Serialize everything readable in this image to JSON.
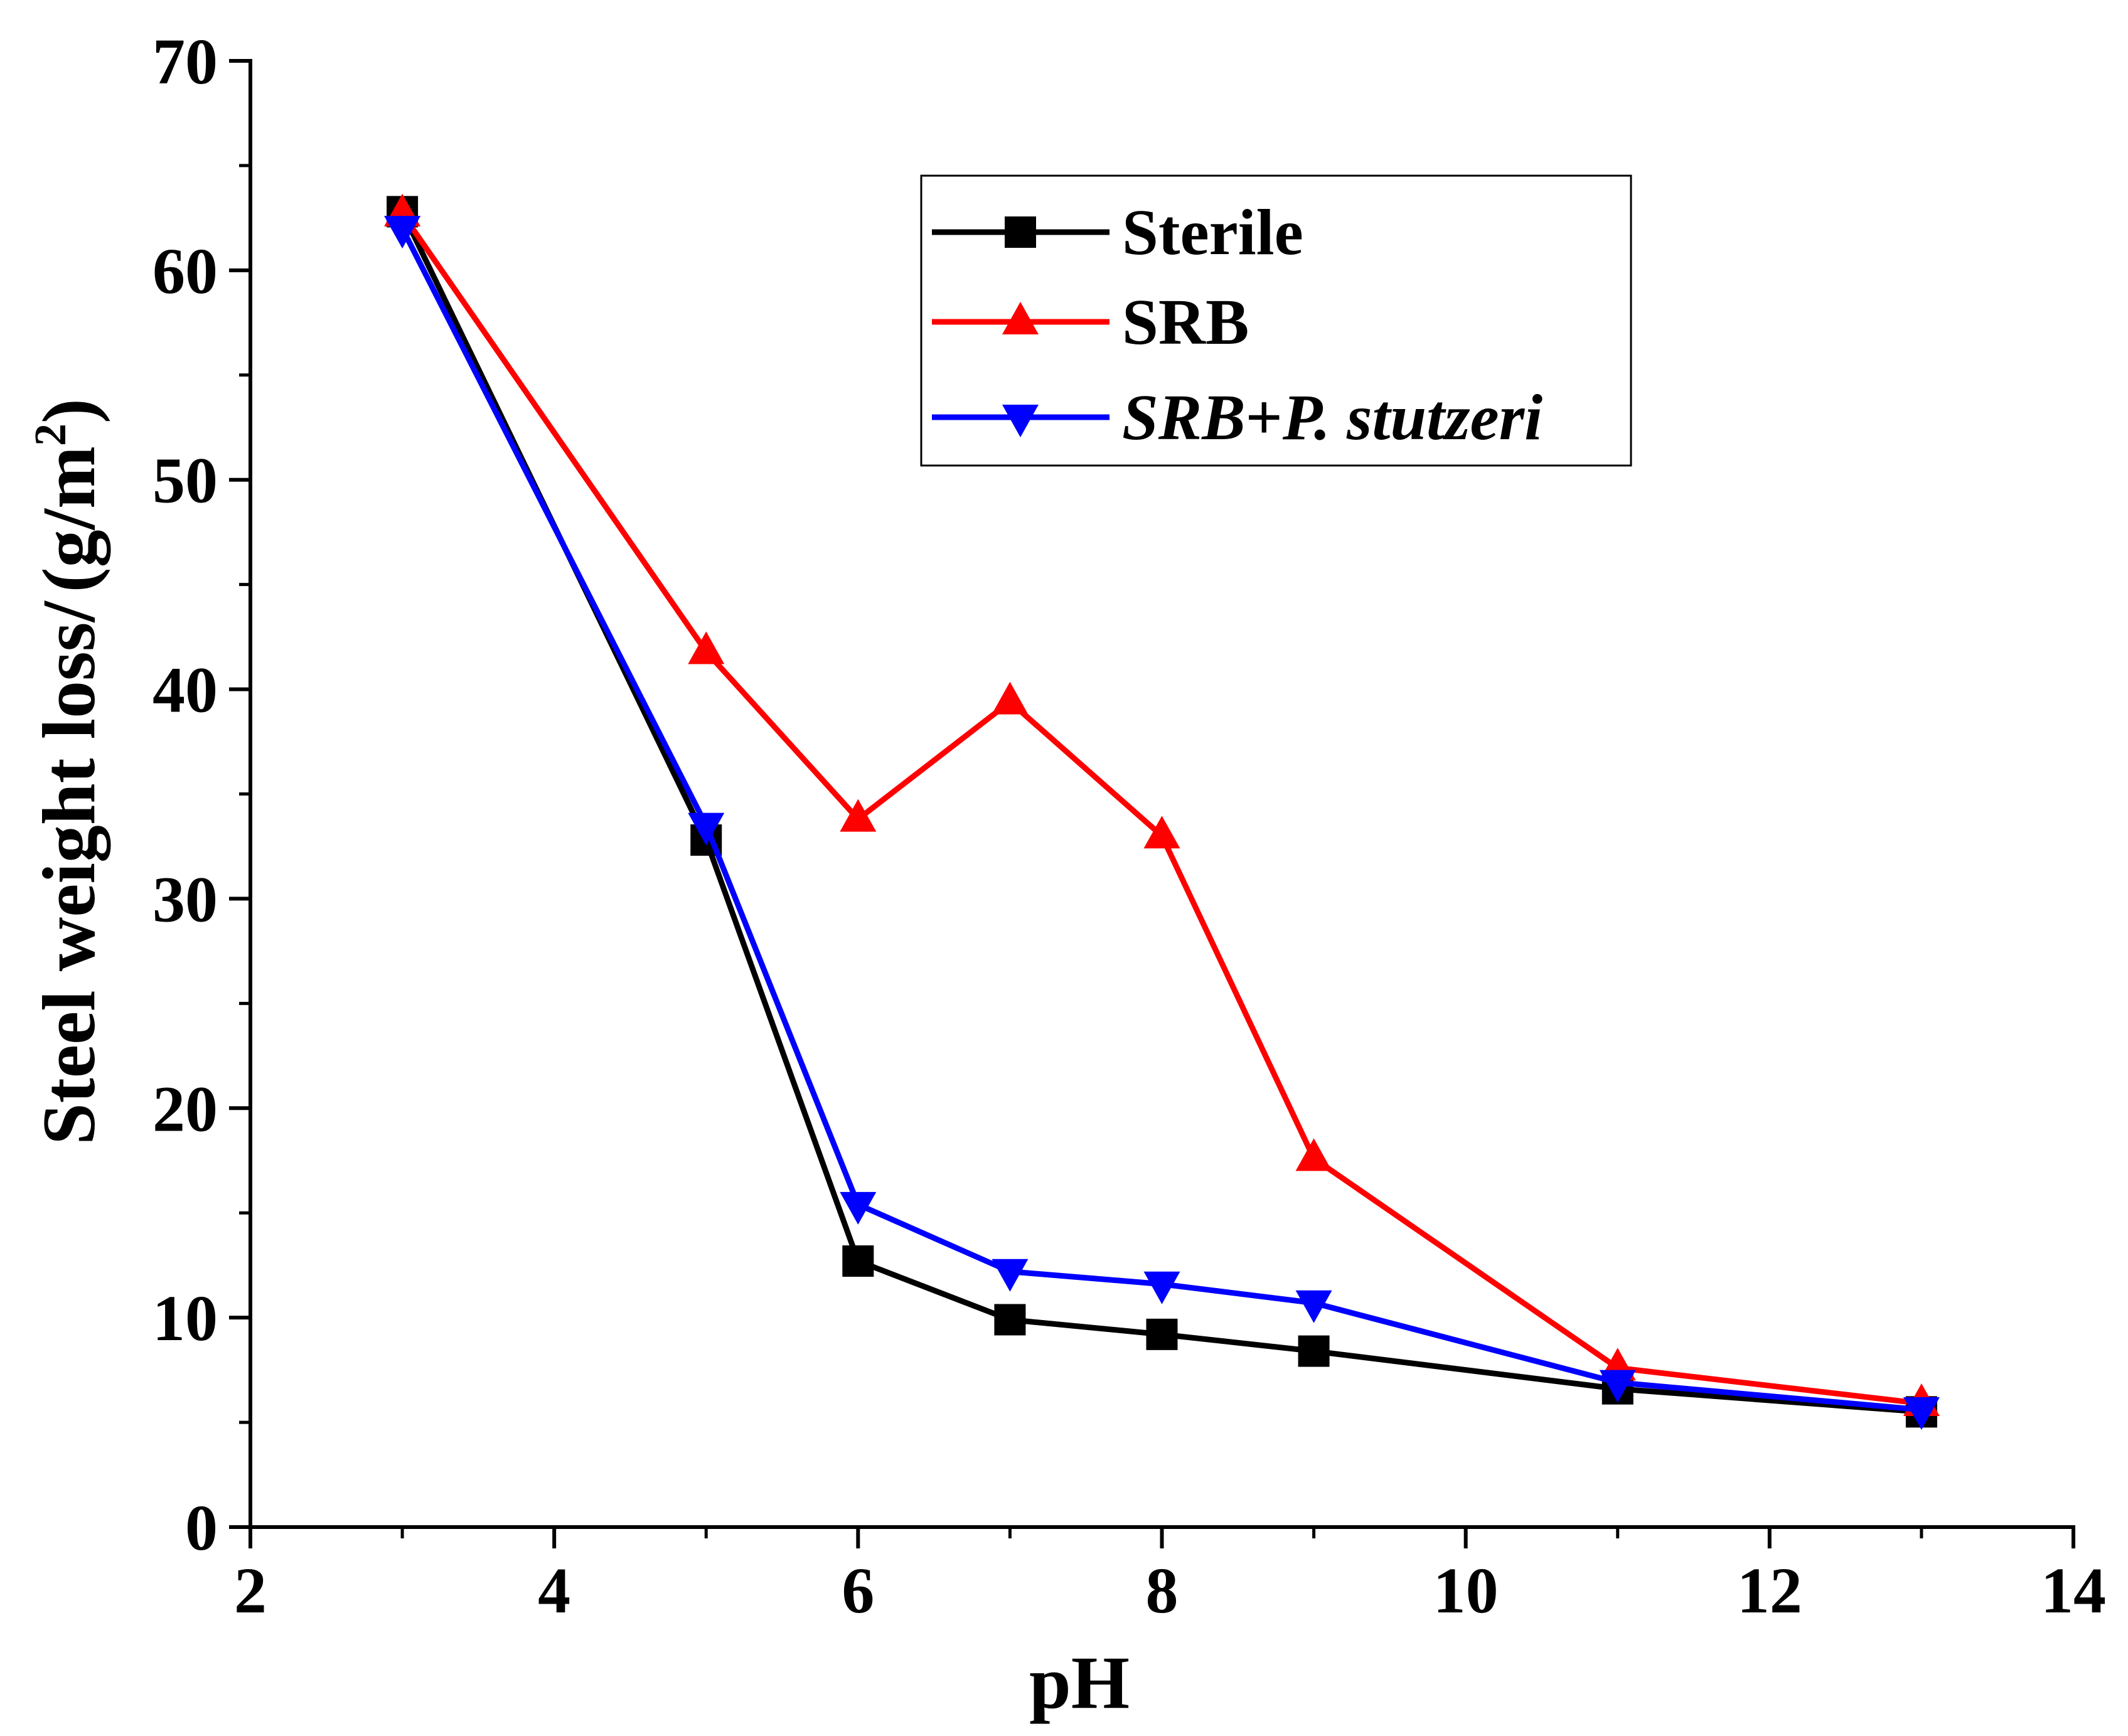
{
  "chart_data": {
    "type": "line",
    "title": "",
    "xlabel": "pH",
    "ylabel": "Steel weight loss/",
    "ylabel_unit": "(g/m",
    "ylabel_sup": "2",
    "ylabel_close": ")",
    "xlim": [
      2,
      14
    ],
    "ylim": [
      0,
      70
    ],
    "xticks": [
      2,
      4,
      6,
      8,
      10,
      12,
      14
    ],
    "yticks": [
      0,
      10,
      20,
      30,
      40,
      50,
      60,
      70
    ],
    "legend_position": "top-right",
    "x": [
      3,
      5,
      6,
      7,
      8,
      9,
      11,
      13
    ],
    "series": [
      {
        "name": "Sterile",
        "marker": "square",
        "color": "#000000",
        "values": [
          62.8,
          32.8,
          12.7,
          9.9,
          9.2,
          8.4,
          6.6,
          5.5
        ]
      },
      {
        "name": "SRB",
        "marker": "triangle-up",
        "color": "#ff0000",
        "values": [
          62.7,
          41.8,
          33.8,
          39.4,
          33.0,
          17.6,
          7.6,
          5.9
        ]
      },
      {
        "name": "SRB+P. stutzeri",
        "name_part1": "SRB",
        "name_part2": "+",
        "name_part3": "P. stutzeri",
        "marker": "triangle-down",
        "color": "#0000ff",
        "values": [
          62.0,
          33.5,
          15.4,
          12.2,
          11.6,
          10.7,
          6.9,
          5.6
        ]
      }
    ]
  }
}
